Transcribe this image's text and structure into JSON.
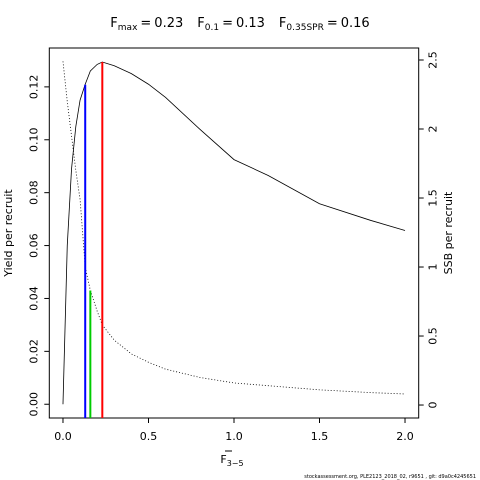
{
  "chart_data": {
    "type": "line",
    "title_items": [
      {
        "symbol": "F",
        "subscript": "max",
        "separator": "=",
        "value": 0.23
      },
      {
        "symbol": "F",
        "subscript": "0.1",
        "separator": "=",
        "value": 0.13
      },
      {
        "symbol": "F",
        "subscript": "0.35SPR",
        "separator": "=",
        "value": 0.16
      }
    ],
    "xlabel": "F",
    "xlabel_subscript": "3−5",
    "ylabel": "Yield per recruit",
    "y2label": "SSB per recruit",
    "footer": "stockassessment.org, PLE2123_2018_02, r9651 , git: d9a0c4245651",
    "x": [
      0,
      0.025,
      0.05,
      0.075,
      0.1,
      0.13,
      0.16,
      0.2,
      0.23,
      0.3,
      0.4,
      0.5,
      0.6,
      0.8,
      1.0,
      1.2,
      1.5,
      1.8,
      2.0
    ],
    "series": [
      {
        "name": "Yield per recruit",
        "color": "#000000",
        "dash": "solid",
        "axis": "y",
        "values": [
          0,
          0.06,
          0.089,
          0.105,
          0.115,
          0.121,
          0.126,
          0.1285,
          0.1294,
          0.128,
          0.125,
          0.121,
          0.116,
          0.104,
          0.0925,
          0.0865,
          0.0758,
          0.0695,
          0.0657
        ]
      },
      {
        "name": "SSB per recruit",
        "color": "#000000",
        "dash": "dotted",
        "axis": "y2",
        "values": [
          2.49,
          2.2,
          1.95,
          1.7,
          1.49,
          1.0,
          0.83,
          0.68,
          0.58,
          0.47,
          0.37,
          0.31,
          0.26,
          0.2,
          0.16,
          0.14,
          0.11,
          0.09,
          0.08
        ]
      }
    ],
    "reference_lines": [
      {
        "x": 0.23,
        "y": 0.1294,
        "axis": "y",
        "color": "#ff0000"
      },
      {
        "x": 0.13,
        "y": 0.1208,
        "axis": "y",
        "color": "#0000ff"
      },
      {
        "x": 0.16,
        "y": 0.83,
        "axis": "y2",
        "color": "#00cc00"
      }
    ],
    "xlim": [
      -0.08,
      2.08
    ],
    "xticks": [
      {
        "value": 0,
        "label": "0.0"
      },
      {
        "value": 0.5,
        "label": "0.5"
      },
      {
        "value": 1,
        "label": "1.0"
      },
      {
        "value": 1.5,
        "label": "1.5"
      },
      {
        "value": 2,
        "label": "2.0"
      }
    ],
    "ylim": [
      -0.0052,
      0.1347
    ],
    "yticks": [
      {
        "value": 0,
        "label": "0.00"
      },
      {
        "value": 0.02,
        "label": "0.02"
      },
      {
        "value": 0.04,
        "label": "0.04"
      },
      {
        "value": 0.06,
        "label": "0.06"
      },
      {
        "value": 0.08,
        "label": "0.08"
      },
      {
        "value": 0.1,
        "label": "0.10"
      },
      {
        "value": 0.12,
        "label": "0.12"
      }
    ],
    "y2lim": [
      -0.094,
      2.587
    ],
    "y2ticks": [
      0,
      0.5,
      1,
      1.5,
      2,
      2.5
    ]
  }
}
